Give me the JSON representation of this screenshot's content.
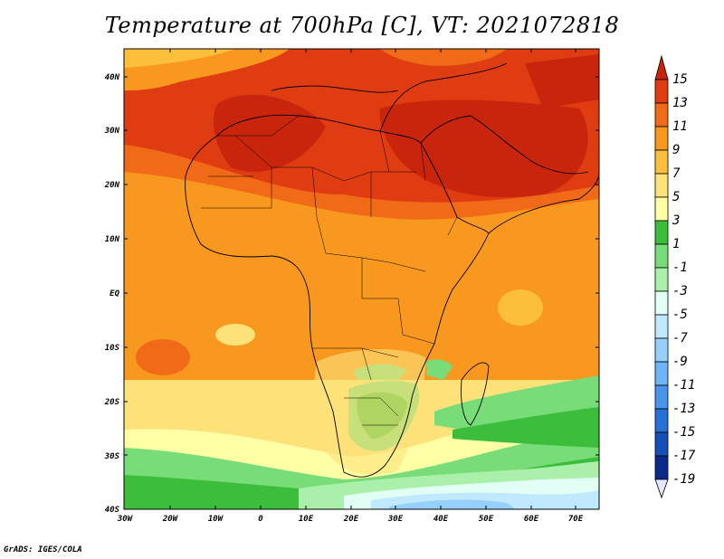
{
  "title": "Temperature at 700hPa [C], VT: 2021072818",
  "credit": "GrADS: IGES/COLA",
  "map": {
    "lat_labels": [
      "40N",
      "30N",
      "20N",
      "10N",
      "EQ",
      "10S",
      "20S",
      "30S",
      "40S"
    ],
    "lon_labels": [
      "30W",
      "20W",
      "10W",
      "0",
      "10E",
      "20E",
      "30E",
      "40E",
      "50E",
      "60E",
      "70E"
    ]
  },
  "colorbar": {
    "unit": "C",
    "labels": [
      "15",
      "13",
      "11",
      "9",
      "7",
      "5",
      "3",
      "1",
      "-1",
      "-3",
      "-5",
      "-7",
      "-9",
      "-11",
      "-13",
      "-15",
      "-17",
      "-19"
    ],
    "colors": [
      "#c8250c",
      "#e03c12",
      "#f06a18",
      "#f8981e",
      "#fbbf3c",
      "#fde27a",
      "#ffffa6",
      "#3cbe3c",
      "#78dc78",
      "#aaf0aa",
      "#e2fff6",
      "#c0e8ff",
      "#96d0ff",
      "#70b4f8",
      "#4a94ec",
      "#2870d8",
      "#1450b8",
      "#0c2a8c",
      "#0c1470"
    ]
  }
}
